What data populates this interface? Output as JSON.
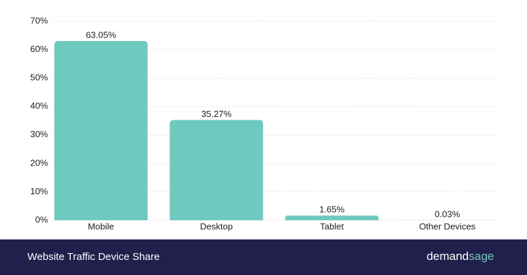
{
  "chart_data": {
    "type": "bar",
    "title": "Website Traffic Device Share",
    "categories": [
      "Mobile",
      "Desktop",
      "Tablet",
      "Other Devices"
    ],
    "values": [
      63.05,
      35.27,
      1.65,
      0.03
    ],
    "value_labels": [
      "63.05%",
      "35.27%",
      "1.65%",
      "0.03%"
    ],
    "color": "#6fc9bf",
    "ylim": [
      0,
      70
    ],
    "yticks": [
      {
        "value": 0,
        "label": "0%"
      },
      {
        "value": 10,
        "label": "10%"
      },
      {
        "value": 20,
        "label": "20%"
      },
      {
        "value": 30,
        "label": "30%"
      },
      {
        "value": 40,
        "label": "40%"
      },
      {
        "value": 50,
        "label": "50%"
      },
      {
        "value": 60,
        "label": "60%"
      },
      {
        "value": 70,
        "label": "70%"
      }
    ],
    "grid": true
  },
  "brand": {
    "main": "demand",
    "accent": "sage"
  }
}
